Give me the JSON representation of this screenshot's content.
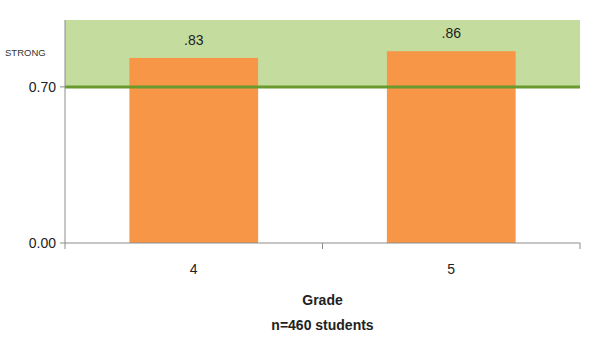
{
  "chart_data": {
    "type": "bar",
    "categories": [
      "4",
      "5"
    ],
    "values": [
      0.83,
      0.86
    ],
    "value_labels": [
      ".83",
      ".86"
    ],
    "data_labels": true,
    "color": "#f79646",
    "ylim": [
      0,
      1
    ],
    "yticks": [
      {
        "value": 0,
        "label": "0.00"
      },
      {
        "value": 0.7,
        "label": "0.70"
      }
    ],
    "grid": false,
    "x_label": "Grade",
    "x_sublabel": "n=460 students",
    "bands": [
      {
        "label": "STRONG",
        "from": 0.7,
        "to": 1,
        "color": "#c4dd9f"
      }
    ]
  }
}
